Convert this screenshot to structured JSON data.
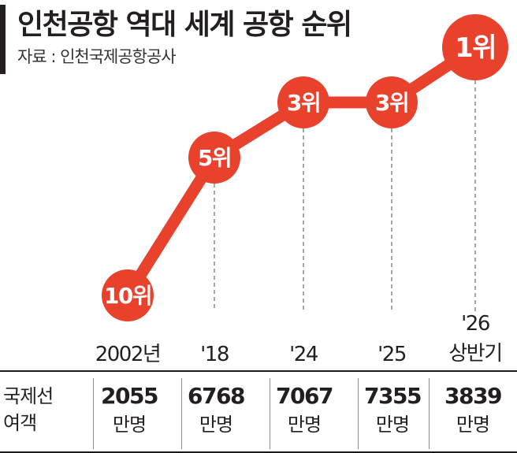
{
  "header": {
    "title": "인천공항 역대 세계 공항 순위",
    "source": "자료 : 인천국제공항공사"
  },
  "colors": {
    "accent": "#e8412c",
    "text": "#231f20",
    "guide": "#8a8a8a"
  },
  "chart_data": {
    "type": "line",
    "title": "인천공항 역대 세계 공항 순위",
    "categories": [
      "2002년",
      "'18",
      "'24",
      "'25",
      "'26 상반기"
    ],
    "category_lines": [
      [
        "2002년"
      ],
      [
        "'18"
      ],
      [
        "'24"
      ],
      [
        "'25"
      ],
      [
        "'26",
        "상반기"
      ]
    ],
    "ranks": [
      10,
      5,
      3,
      3,
      1
    ],
    "rank_labels": [
      "10위",
      "5위",
      "3위",
      "3위",
      "1위"
    ],
    "y_axis": "rank (inverted)",
    "grid": false,
    "legend": "none"
  },
  "table": {
    "row_header": [
      "국제선",
      "여객"
    ],
    "values": [
      "2055",
      "6768",
      "7067",
      "7355",
      "3839"
    ],
    "unit": "만명"
  }
}
